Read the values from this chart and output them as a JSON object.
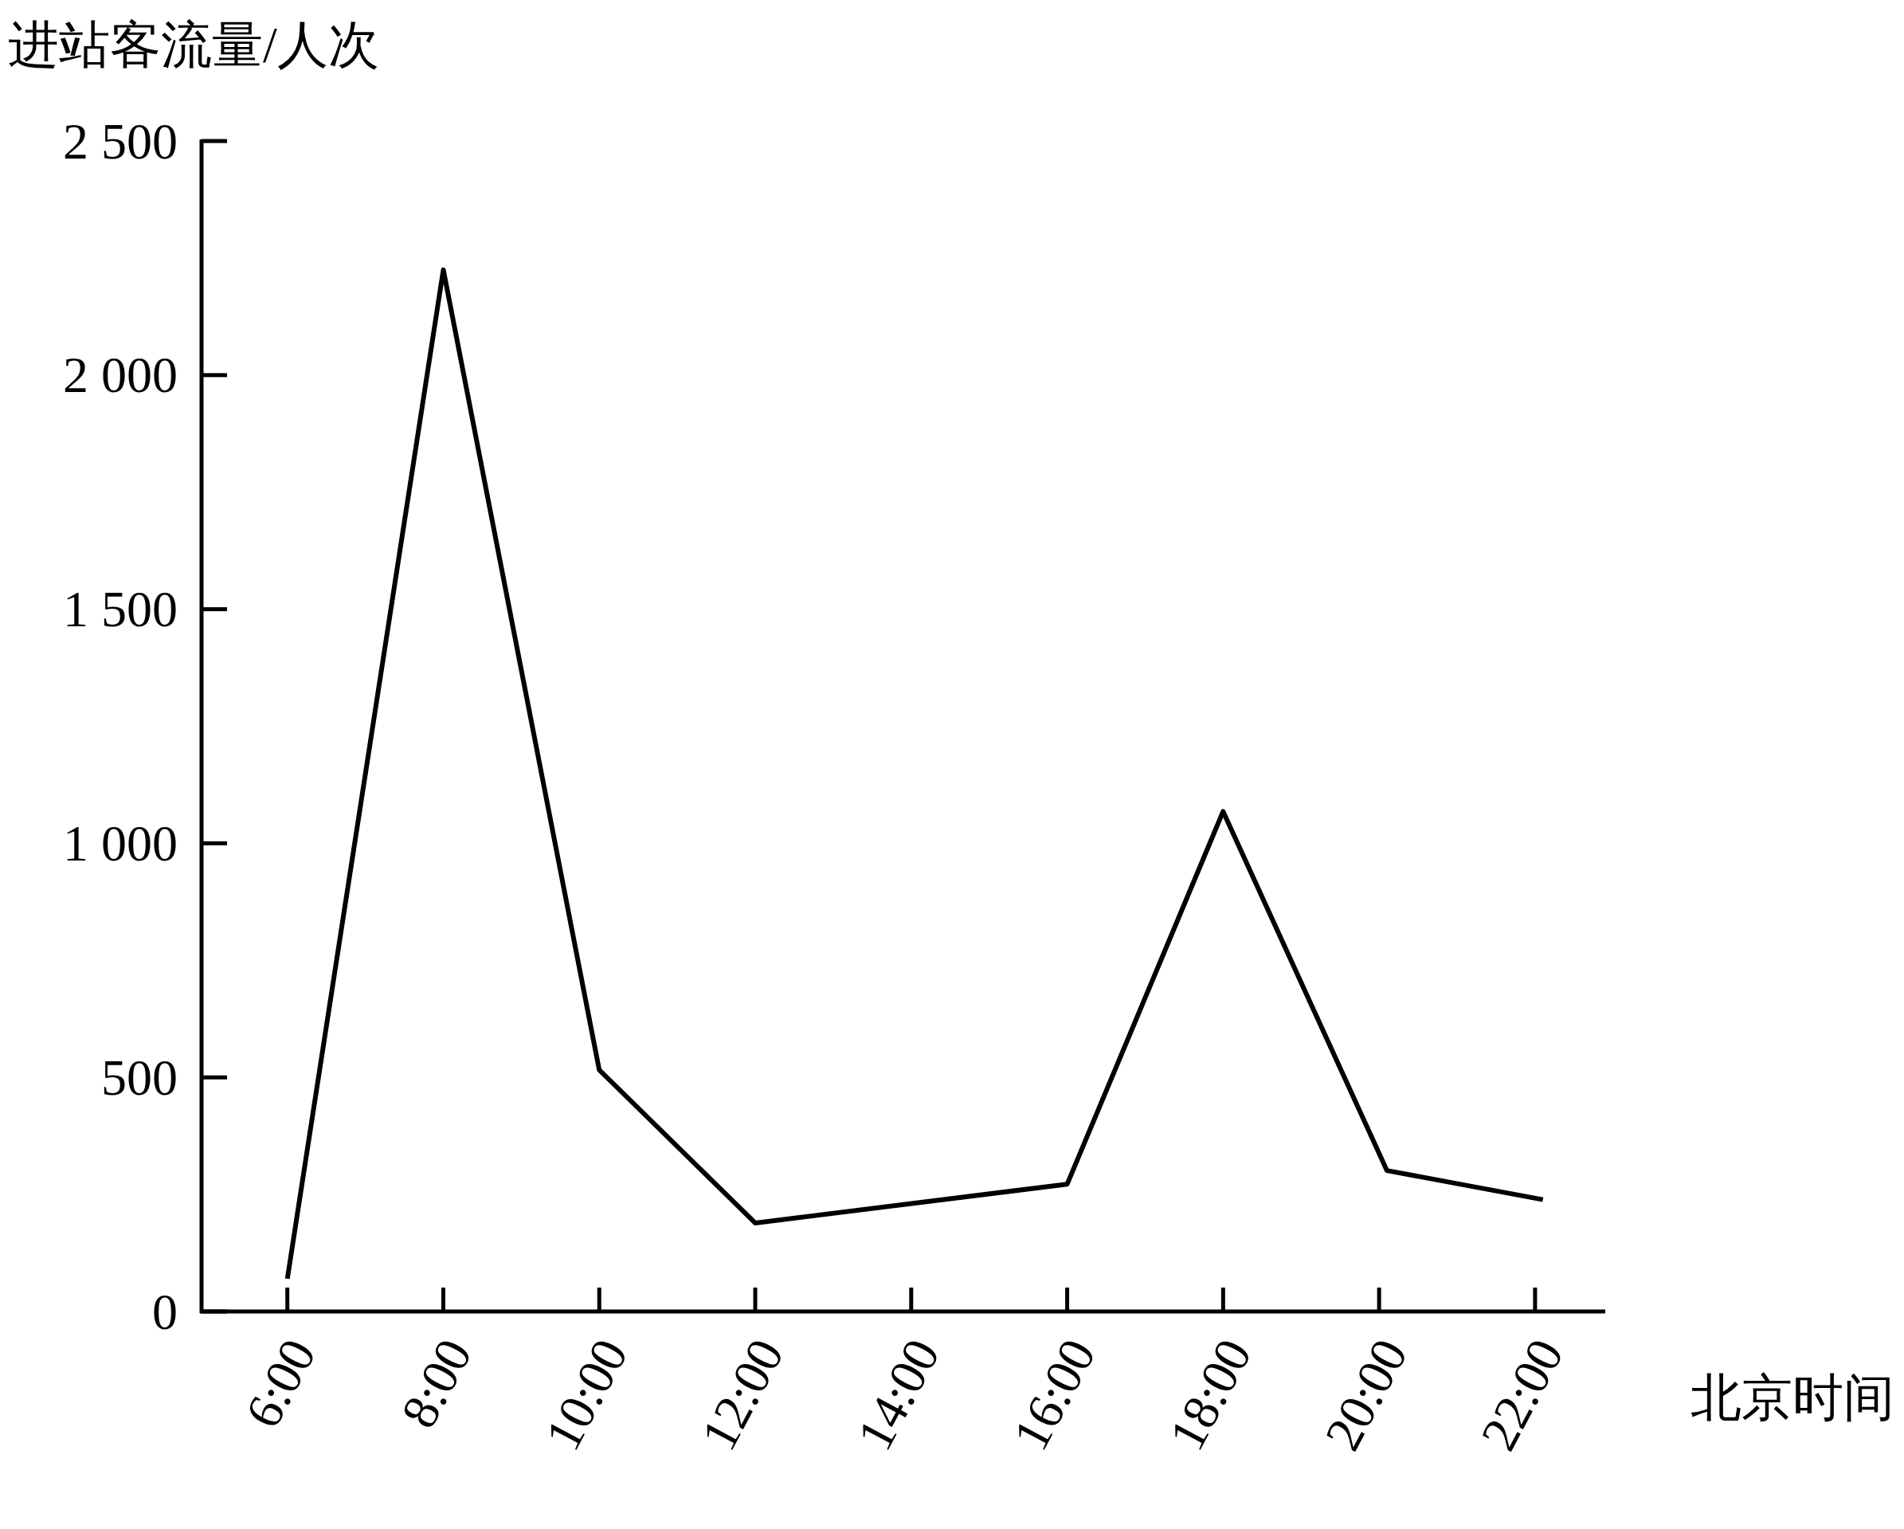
{
  "chart_data": {
    "type": "line",
    "ylabel": "进站客流量/人次",
    "xlabel": "北京时间",
    "series": [
      {
        "color": "#000000",
        "x": [
          6,
          8,
          10,
          12,
          16,
          18,
          20.1,
          22.1
        ],
        "values": [
          70,
          2225,
          516,
          189,
          272,
          1068,
          301,
          239
        ]
      }
    ],
    "xlim": [
      4.9,
      22.9
    ],
    "xticks": [
      {
        "value": 6,
        "label": "6:00"
      },
      {
        "value": 8,
        "label": "8:00"
      },
      {
        "value": 10,
        "label": "10:00"
      },
      {
        "value": 12,
        "label": "12:00"
      },
      {
        "value": 14,
        "label": "14:00"
      },
      {
        "value": 16,
        "label": "16:00"
      },
      {
        "value": 18,
        "label": "18:00"
      },
      {
        "value": 20,
        "label": "20:00"
      },
      {
        "value": 22,
        "label": "22:00"
      }
    ],
    "ylim": [
      0,
      2500
    ],
    "yticks": [
      0,
      500,
      {
        "value": 1000,
        "label": "1 000"
      },
      {
        "value": 1500,
        "label": "1 500"
      },
      {
        "value": 2000,
        "label": "2 000"
      },
      {
        "value": 2500,
        "label": "2 500"
      }
    ],
    "grid": false,
    "marker": "none",
    "line_style": "solid"
  }
}
